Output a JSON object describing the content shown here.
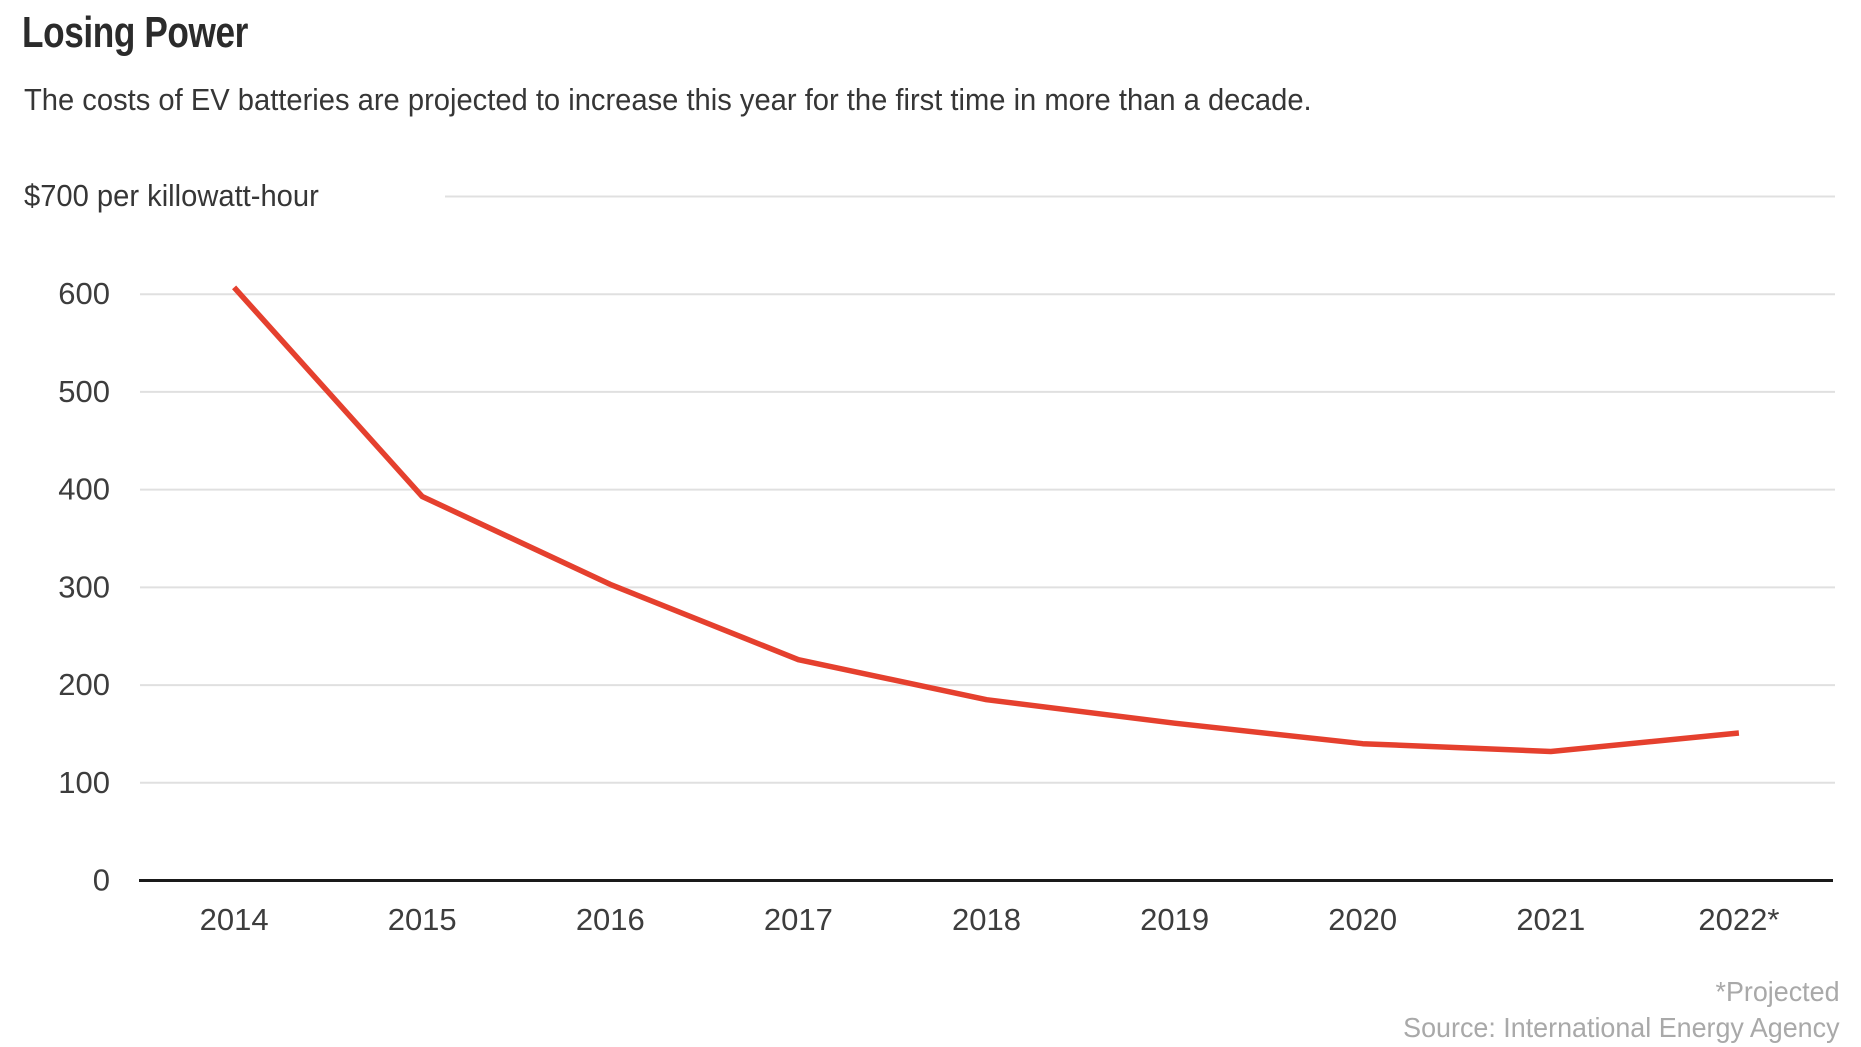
{
  "chart_data": {
    "type": "line",
    "title": "Losing Power",
    "subtitle": "The costs of EV batteries are projected to increase this year for the first time in more than a decade.",
    "unit_label": "$700 per killowatt-hour",
    "xlabel": "",
    "ylabel": "$ per kilowatt-hour",
    "categories": [
      "2014",
      "2015",
      "2016",
      "2017",
      "2018",
      "2019",
      "2020",
      "2021",
      "2022*"
    ],
    "values": [
      607,
      393,
      303,
      226,
      185,
      161,
      140,
      132,
      151
    ],
    "ylim": [
      0,
      700
    ],
    "yticks": [
      0,
      100,
      200,
      300,
      400,
      500,
      600
    ],
    "grid": "horizontal",
    "legend": "none",
    "line_color": "#e5402e",
    "grid_color": "#e0e0e0",
    "axis_color": "#1a1a1a",
    "label_color": "#3d3d3d",
    "footnote": "*Projected",
    "source": "Source: International Energy Agency"
  },
  "colors": {
    "accent_line": "#e5402e",
    "grid": "#e0e0e0",
    "axis": "#1a1a1a",
    "tick_text": "#3d3d3d",
    "heading_text": "#2b2b2b",
    "body_text": "#363636",
    "footer_text": "#a9a9a9",
    "background": "#ffffff"
  }
}
